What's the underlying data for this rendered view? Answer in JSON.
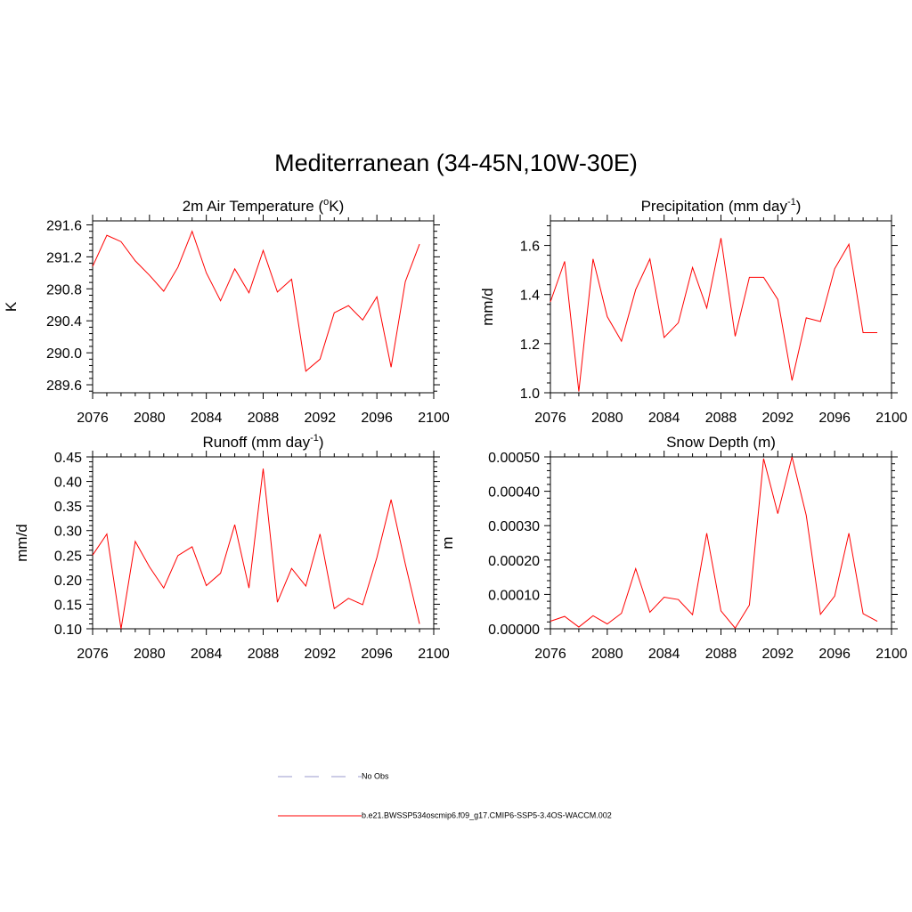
{
  "title": "Mediterranean (34-45N,10W-30E)",
  "chart_data": [
    {
      "type": "line",
      "title_main": "2m Air Temperature (",
      "title_sup": "o",
      "title_rest": "K)",
      "ylabel": "K",
      "xlim": [
        2076,
        2100
      ],
      "ylim": [
        289.5,
        291.65
      ],
      "xticks": [
        2076,
        2080,
        2084,
        2088,
        2092,
        2096,
        2100
      ],
      "yticks": [
        289.6,
        290.0,
        290.4,
        290.8,
        291.2,
        291.6
      ],
      "ytick_labels": [
        "289.6",
        "290.0",
        "290.4",
        "290.8",
        "291.2",
        "291.6"
      ],
      "x": [
        2076,
        2077,
        2078,
        2079,
        2080,
        2081,
        2082,
        2083,
        2084,
        2085,
        2086,
        2087,
        2088,
        2089,
        2090,
        2091,
        2092,
        2093,
        2094,
        2095,
        2096,
        2097,
        2098,
        2099
      ],
      "series": [
        {
          "color": "#ff0000",
          "values": [
            291.08,
            291.47,
            291.39,
            291.15,
            290.97,
            290.77,
            291.07,
            291.52,
            291.0,
            290.65,
            291.05,
            290.75,
            291.28,
            290.76,
            290.92,
            289.77,
            289.92,
            290.5,
            290.59,
            290.41,
            290.7,
            289.82,
            290.89,
            291.36
          ]
        }
      ]
    },
    {
      "type": "line",
      "title_main": "Precipitation (mm day",
      "title_sup": "-1",
      "title_rest": ")",
      "ylabel": "mm/d",
      "xlim": [
        2076,
        2100
      ],
      "ylim": [
        1.0,
        1.7
      ],
      "xticks": [
        2076,
        2080,
        2084,
        2088,
        2092,
        2096,
        2100
      ],
      "yticks": [
        1.0,
        1.2,
        1.4,
        1.6
      ],
      "ytick_labels": [
        "1.0",
        "1.2",
        "1.4",
        "1.6"
      ],
      "x": [
        2076,
        2077,
        2078,
        2079,
        2080,
        2081,
        2082,
        2083,
        2084,
        2085,
        2086,
        2087,
        2088,
        2089,
        2090,
        2091,
        2092,
        2093,
        2094,
        2095,
        2096,
        2097,
        2098,
        2099
      ],
      "series": [
        {
          "color": "#ff0000",
          "values": [
            1.37,
            1.535,
            1.005,
            1.545,
            1.31,
            1.21,
            1.42,
            1.545,
            1.225,
            1.285,
            1.51,
            1.345,
            1.63,
            1.23,
            1.47,
            1.47,
            1.38,
            1.05,
            1.305,
            1.29,
            1.505,
            1.605,
            1.245,
            1.245
          ]
        }
      ]
    },
    {
      "type": "line",
      "title_main": "Runoff (mm day",
      "title_sup": "-1",
      "title_rest": ")",
      "ylabel": "mm/d",
      "xlim": [
        2076,
        2100
      ],
      "ylim": [
        0.1,
        0.45
      ],
      "xticks": [
        2076,
        2080,
        2084,
        2088,
        2092,
        2096,
        2100
      ],
      "yticks": [
        0.1,
        0.15,
        0.2,
        0.25,
        0.3,
        0.35,
        0.4,
        0.45
      ],
      "ytick_labels": [
        "0.10",
        "0.15",
        "0.20",
        "0.25",
        "0.30",
        "0.35",
        "0.40",
        "0.45"
      ],
      "x": [
        2076,
        2077,
        2078,
        2079,
        2080,
        2081,
        2082,
        2083,
        2084,
        2085,
        2086,
        2087,
        2088,
        2089,
        2090,
        2091,
        2092,
        2093,
        2094,
        2095,
        2096,
        2097,
        2098,
        2099
      ],
      "series": [
        {
          "color": "#ff0000",
          "values": [
            0.25,
            0.293,
            0.1,
            0.278,
            0.226,
            0.183,
            0.249,
            0.267,
            0.188,
            0.213,
            0.312,
            0.183,
            0.426,
            0.154,
            0.223,
            0.187,
            0.293,
            0.141,
            0.162,
            0.149,
            0.245,
            0.363,
            0.232,
            0.11
          ]
        }
      ]
    },
    {
      "type": "line",
      "title_main": "Snow Depth (m)",
      "title_sup": "",
      "title_rest": "",
      "ylabel": "m",
      "xlim": [
        2076,
        2100
      ],
      "ylim": [
        0,
        0.0005
      ],
      "xticks": [
        2076,
        2080,
        2084,
        2088,
        2092,
        2096,
        2100
      ],
      "yticks": [
        0,
        0.0001,
        0.0002,
        0.0003,
        0.0004,
        0.0005
      ],
      "ytick_labels": [
        "0.00000",
        "0.00010",
        "0.00020",
        "0.00030",
        "0.00040",
        "0.00050"
      ],
      "x": [
        2076,
        2077,
        2078,
        2079,
        2080,
        2081,
        2082,
        2083,
        2084,
        2085,
        2086,
        2087,
        2088,
        2089,
        2090,
        2091,
        2092,
        2093,
        2094,
        2095,
        2096,
        2097,
        2098,
        2099
      ],
      "series": [
        {
          "color": "#ff0000",
          "values": [
            2.2e-05,
            3.6e-05,
            5e-06,
            3.8e-05,
            1.4e-05,
            4.5e-05,
            0.000175,
            4.8e-05,
            9.2e-05,
            8.5e-05,
            4.1e-05,
            0.000278,
            5.2e-05,
            2e-06,
            6.9e-05,
            0.000495,
            0.000335,
            0.0005,
            0.00033,
            4.2e-05,
            9.5e-05,
            0.000278,
            4.4e-05,
            2.2e-05
          ]
        }
      ]
    }
  ],
  "legend": [
    {
      "label": "No Obs",
      "color": "#9999cc",
      "style": "dashed"
    },
    {
      "label": "b.e21.BWSSP534oscmip6.f09_g17.CMIP6-SSP5-3.4OS-WACCM.002",
      "color": "#ff0000",
      "style": "solid"
    }
  ]
}
